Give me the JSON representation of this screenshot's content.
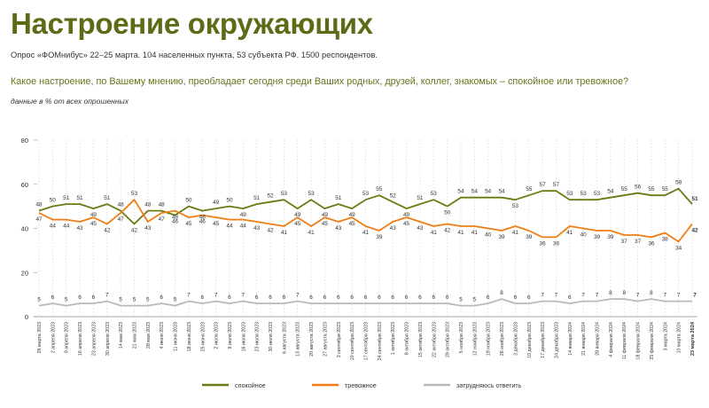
{
  "header": {
    "title": "Настроение окружающих",
    "subtitle": "Опрос «ФОМнибус» 22–25 марта. 104 населенных пункта, 53 субъекта РФ. 1500 респондентов.",
    "question": "Какое настроение, по Вашему мнению, преобладает сегодня среди Ваших родных, друзей, коллег, знакомых – спокойное или тревожное?",
    "note": "данные в % от всех опрошенных"
  },
  "colors": {
    "calm": "#6b7a12",
    "anxious": "#f07d14",
    "dont_know": "#b9b9b9",
    "grid": "#cfcfcf",
    "title": "#5f6a16"
  },
  "chart_data": {
    "type": "line",
    "ylim": [
      0,
      80
    ],
    "yticks": [
      0,
      20,
      40,
      60,
      80
    ],
    "grid": "vertical-dashed",
    "legend_position": "bottom",
    "x": [
      "26 марта 2023",
      "2 апреля 2023",
      "9 апреля 2023",
      "16 апреля 2023",
      "23 апреля 2023",
      "30 апреля 2023",
      "14 мая 2023",
      "21 мая 2023",
      "28 мая 2023",
      "4 июня 2023",
      "11 июня 2023",
      "18 июня 2023",
      "25 июня 2023",
      "2 июля 2023",
      "9 июля 2023",
      "16 июля 2023",
      "23 июля 2023",
      "30 июля 2023",
      "6 августа 2023",
      "13 августа 2023",
      "20 августа 2023",
      "27 августа 2023",
      "3 сентября 2023",
      "10 сентября 2023",
      "17 сентября 2023",
      "24 сентября 2023",
      "1 октября 2023",
      "8 октября 2023",
      "15 октября 2023",
      "22 октября 2023",
      "29 октября 2023",
      "5 ноября 2023",
      "12 ноября 2023",
      "19 ноября 2023",
      "26 ноября 2023",
      "3 декабря 2023",
      "10 декабря 2023",
      "17 декабря 2023",
      "24 декабря 2023",
      "14 января 2024",
      "21 января 2024",
      "28 января 2024",
      "4 февраля 2024",
      "11 февраля 2024",
      "18 февраля 2024",
      "25 февраля 2024",
      "3 марта 2024",
      "10 марта 2024",
      "23 марта 2024"
    ],
    "series": [
      {
        "name": "спокойное",
        "values": [
          48,
          50,
          51,
          51,
          49,
          51,
          48,
          42,
          48,
          48,
          46,
          50,
          48,
          49,
          50,
          49,
          51,
          52,
          53,
          49,
          53,
          49,
          51,
          49,
          53,
          55,
          52,
          49,
          51,
          53,
          50,
          54,
          54,
          54,
          54,
          53,
          55,
          57,
          57,
          53,
          53,
          53,
          54,
          55,
          56,
          55,
          55,
          58,
          51
        ]
      },
      {
        "name": "тревожное",
        "values": [
          47,
          44,
          44,
          43,
          45,
          42,
          47,
          53,
          43,
          47,
          48,
          45,
          46,
          45,
          44,
          44,
          43,
          42,
          41,
          45,
          41,
          45,
          43,
          45,
          41,
          39,
          43,
          45,
          43,
          41,
          42,
          41,
          41,
          40,
          39,
          41,
          39,
          36,
          36,
          41,
          40,
          39,
          39,
          37,
          37,
          36,
          38,
          34,
          42
        ]
      },
      {
        "name": "затрудняюсь ответить",
        "values": [
          5,
          6,
          5,
          6,
          6,
          7,
          5,
          5,
          5,
          6,
          5,
          7,
          6,
          7,
          6,
          7,
          6,
          6,
          6,
          7,
          6,
          6,
          6,
          6,
          6,
          6,
          6,
          6,
          6,
          6,
          6,
          5,
          5,
          6,
          8,
          6,
          6,
          7,
          7,
          6,
          7,
          7,
          8,
          8,
          7,
          8,
          7,
          7,
          7
        ]
      }
    ]
  }
}
